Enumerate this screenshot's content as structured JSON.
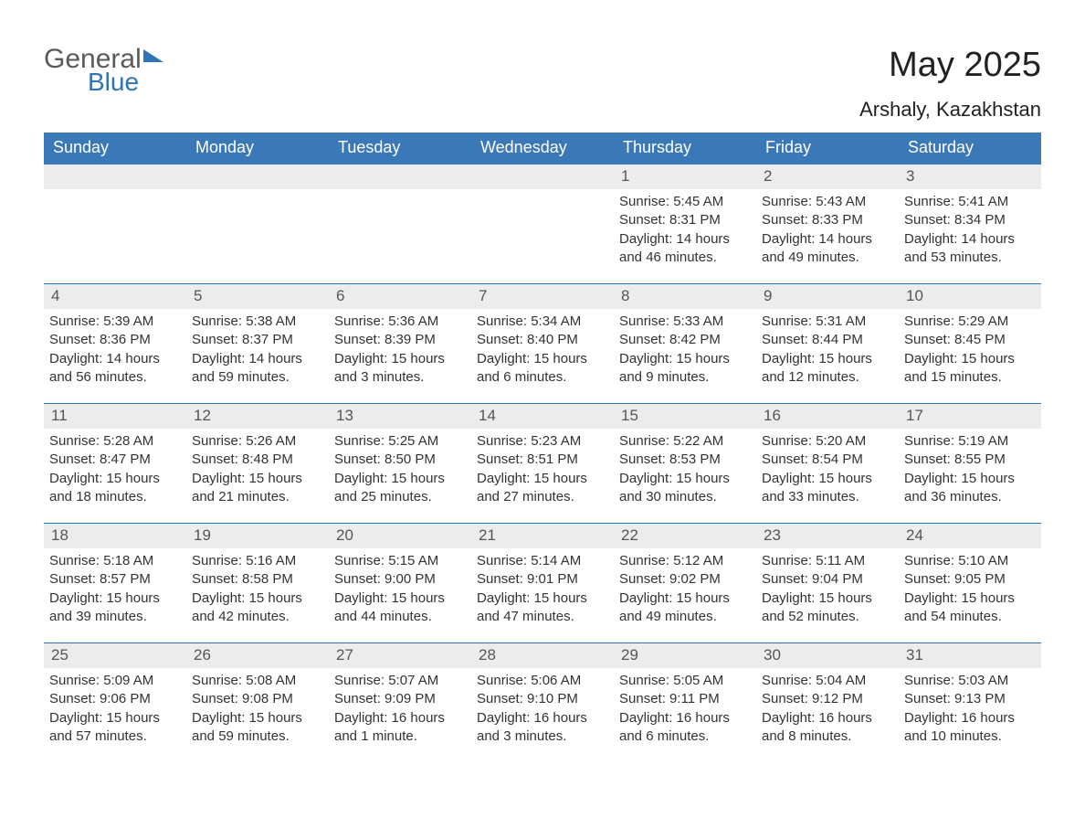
{
  "logo": {
    "word1": "General",
    "word2": "Blue"
  },
  "title": "May 2025",
  "location": "Arshaly, Kazakhstan",
  "colors": {
    "header_bg": "#3b78b8",
    "header_text": "#ffffff",
    "accent": "#2f74b5",
    "daynum_bg": "#ececec",
    "daynum_text": "#555555",
    "body_text": "#333333",
    "background": "#ffffff"
  },
  "layout": {
    "columns": 7,
    "rows": 5,
    "day_header_fontsize": 18,
    "daynum_fontsize": 17,
    "info_fontsize": 15,
    "month_title_fontsize": 38,
    "location_fontsize": 22
  },
  "day_labels": [
    "Sunday",
    "Monday",
    "Tuesday",
    "Wednesday",
    "Thursday",
    "Friday",
    "Saturday"
  ],
  "weeks": [
    [
      null,
      null,
      null,
      null,
      {
        "n": "1",
        "sunrise": "5:45 AM",
        "sunset": "8:31 PM",
        "daylight": "14 hours and 46 minutes."
      },
      {
        "n": "2",
        "sunrise": "5:43 AM",
        "sunset": "8:33 PM",
        "daylight": "14 hours and 49 minutes."
      },
      {
        "n": "3",
        "sunrise": "5:41 AM",
        "sunset": "8:34 PM",
        "daylight": "14 hours and 53 minutes."
      }
    ],
    [
      {
        "n": "4",
        "sunrise": "5:39 AM",
        "sunset": "8:36 PM",
        "daylight": "14 hours and 56 minutes."
      },
      {
        "n": "5",
        "sunrise": "5:38 AM",
        "sunset": "8:37 PM",
        "daylight": "14 hours and 59 minutes."
      },
      {
        "n": "6",
        "sunrise": "5:36 AM",
        "sunset": "8:39 PM",
        "daylight": "15 hours and 3 minutes."
      },
      {
        "n": "7",
        "sunrise": "5:34 AM",
        "sunset": "8:40 PM",
        "daylight": "15 hours and 6 minutes."
      },
      {
        "n": "8",
        "sunrise": "5:33 AM",
        "sunset": "8:42 PM",
        "daylight": "15 hours and 9 minutes."
      },
      {
        "n": "9",
        "sunrise": "5:31 AM",
        "sunset": "8:44 PM",
        "daylight": "15 hours and 12 minutes."
      },
      {
        "n": "10",
        "sunrise": "5:29 AM",
        "sunset": "8:45 PM",
        "daylight": "15 hours and 15 minutes."
      }
    ],
    [
      {
        "n": "11",
        "sunrise": "5:28 AM",
        "sunset": "8:47 PM",
        "daylight": "15 hours and 18 minutes."
      },
      {
        "n": "12",
        "sunrise": "5:26 AM",
        "sunset": "8:48 PM",
        "daylight": "15 hours and 21 minutes."
      },
      {
        "n": "13",
        "sunrise": "5:25 AM",
        "sunset": "8:50 PM",
        "daylight": "15 hours and 25 minutes."
      },
      {
        "n": "14",
        "sunrise": "5:23 AM",
        "sunset": "8:51 PM",
        "daylight": "15 hours and 27 minutes."
      },
      {
        "n": "15",
        "sunrise": "5:22 AM",
        "sunset": "8:53 PM",
        "daylight": "15 hours and 30 minutes."
      },
      {
        "n": "16",
        "sunrise": "5:20 AM",
        "sunset": "8:54 PM",
        "daylight": "15 hours and 33 minutes."
      },
      {
        "n": "17",
        "sunrise": "5:19 AM",
        "sunset": "8:55 PM",
        "daylight": "15 hours and 36 minutes."
      }
    ],
    [
      {
        "n": "18",
        "sunrise": "5:18 AM",
        "sunset": "8:57 PM",
        "daylight": "15 hours and 39 minutes."
      },
      {
        "n": "19",
        "sunrise": "5:16 AM",
        "sunset": "8:58 PM",
        "daylight": "15 hours and 42 minutes."
      },
      {
        "n": "20",
        "sunrise": "5:15 AM",
        "sunset": "9:00 PM",
        "daylight": "15 hours and 44 minutes."
      },
      {
        "n": "21",
        "sunrise": "5:14 AM",
        "sunset": "9:01 PM",
        "daylight": "15 hours and 47 minutes."
      },
      {
        "n": "22",
        "sunrise": "5:12 AM",
        "sunset": "9:02 PM",
        "daylight": "15 hours and 49 minutes."
      },
      {
        "n": "23",
        "sunrise": "5:11 AM",
        "sunset": "9:04 PM",
        "daylight": "15 hours and 52 minutes."
      },
      {
        "n": "24",
        "sunrise": "5:10 AM",
        "sunset": "9:05 PM",
        "daylight": "15 hours and 54 minutes."
      }
    ],
    [
      {
        "n": "25",
        "sunrise": "5:09 AM",
        "sunset": "9:06 PM",
        "daylight": "15 hours and 57 minutes."
      },
      {
        "n": "26",
        "sunrise": "5:08 AM",
        "sunset": "9:08 PM",
        "daylight": "15 hours and 59 minutes."
      },
      {
        "n": "27",
        "sunrise": "5:07 AM",
        "sunset": "9:09 PM",
        "daylight": "16 hours and 1 minute."
      },
      {
        "n": "28",
        "sunrise": "5:06 AM",
        "sunset": "9:10 PM",
        "daylight": "16 hours and 3 minutes."
      },
      {
        "n": "29",
        "sunrise": "5:05 AM",
        "sunset": "9:11 PM",
        "daylight": "16 hours and 6 minutes."
      },
      {
        "n": "30",
        "sunrise": "5:04 AM",
        "sunset": "9:12 PM",
        "daylight": "16 hours and 8 minutes."
      },
      {
        "n": "31",
        "sunrise": "5:03 AM",
        "sunset": "9:13 PM",
        "daylight": "16 hours and 10 minutes."
      }
    ]
  ],
  "labels": {
    "sunrise": "Sunrise: ",
    "sunset": "Sunset: ",
    "daylight": "Daylight: "
  }
}
